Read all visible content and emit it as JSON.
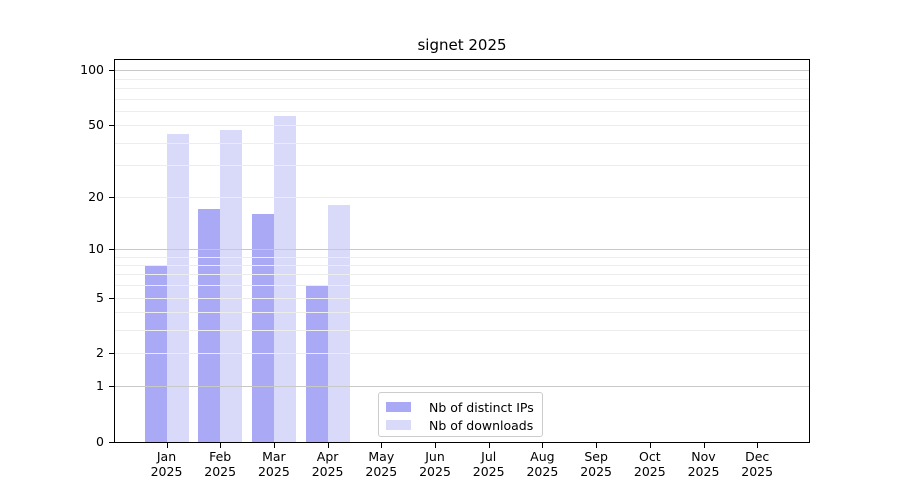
{
  "chart_data": {
    "type": "bar",
    "title": "signet 2025",
    "categories": [
      "Jan 2025",
      "Feb 2025",
      "Mar 2025",
      "Apr 2025",
      "May 2025",
      "Jun 2025",
      "Jul 2025",
      "Aug 2025",
      "Sep 2025",
      "Oct 2025",
      "Nov 2025",
      "Dec 2025"
    ],
    "x_tick_month_labels": [
      "Jan",
      "Feb",
      "Mar",
      "Apr",
      "May",
      "Jun",
      "Jul",
      "Aug",
      "Sep",
      "Oct",
      "Nov",
      "Dec"
    ],
    "x_tick_year_label": "2025",
    "series": [
      {
        "name": "Nb of distinct IPs",
        "color": "#a9a9f5",
        "values": [
          8,
          17,
          16,
          6,
          0,
          0,
          0,
          0,
          0,
          0,
          0,
          0
        ]
      },
      {
        "name": "Nb of downloads",
        "color": "#d9d9fa",
        "values": [
          45,
          47,
          56,
          18,
          0,
          0,
          0,
          0,
          0,
          0,
          0,
          0
        ]
      }
    ],
    "xlabel": "",
    "ylabel": "",
    "y_scale": "log10(1+value)",
    "ylim": [
      0,
      115
    ],
    "y_ticks": [
      0,
      1,
      2,
      5,
      10,
      20,
      50,
      100
    ],
    "y_major_gridlines": [
      1,
      10,
      100
    ],
    "y_minor_gridlines": [
      2,
      3,
      4,
      5,
      6,
      7,
      8,
      9,
      20,
      30,
      40,
      50,
      60,
      70,
      80,
      90
    ],
    "grid": "horizontal-only",
    "legend_position": "inside-lower-center"
  },
  "colors": {
    "bar_distinct_ips": "#a9a9f5",
    "bar_downloads": "#d9d9fa",
    "grid_major": "#c8c8c8",
    "grid_minor": "#ededed",
    "axis": "#000000",
    "text": "#000000",
    "legend_border": "#cccccc",
    "background": "#ffffff"
  }
}
